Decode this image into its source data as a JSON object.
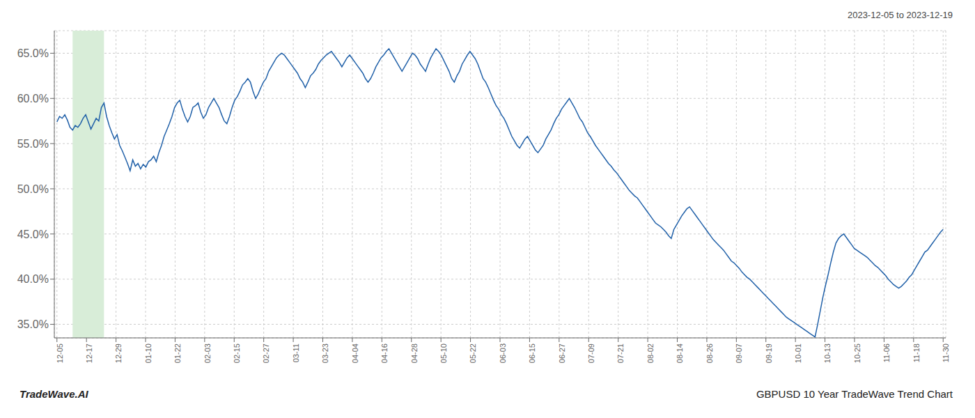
{
  "chart_data": {
    "type": "line",
    "title": "GBPUSD 10 Year TradeWave Trend Chart",
    "subtitle": "2023-12-05 to 2023-12-19",
    "annotations": [
      "TradeWave.AI"
    ],
    "color": "#2060a8",
    "grid": true,
    "highlight": {
      "start": 6,
      "end": 18,
      "color": "#d8edd8"
    },
    "xlim": [
      -1,
      340
    ],
    "xticks": [
      {
        "value": 0,
        "label": "12-05"
      },
      {
        "value": 11.3,
        "label": "12-17"
      },
      {
        "value": 22.6,
        "label": "12-29"
      },
      {
        "value": 33.9,
        "label": "01-10"
      },
      {
        "value": 45.2,
        "label": "01-22"
      },
      {
        "value": 56.5,
        "label": "02-03"
      },
      {
        "value": 67.8,
        "label": "02-15"
      },
      {
        "value": 79.1,
        "label": "02-27"
      },
      {
        "value": 90.4,
        "label": "03-11"
      },
      {
        "value": 101.7,
        "label": "03-23"
      },
      {
        "value": 113,
        "label": "04-04"
      },
      {
        "value": 124.3,
        "label": "04-16"
      },
      {
        "value": 135.6,
        "label": "04-28"
      },
      {
        "value": 146.9,
        "label": "05-10"
      },
      {
        "value": 158.2,
        "label": "05-22"
      },
      {
        "value": 169.5,
        "label": "06-03"
      },
      {
        "value": 180.8,
        "label": "06-15"
      },
      {
        "value": 192.1,
        "label": "06-27"
      },
      {
        "value": 203.4,
        "label": "07-09"
      },
      {
        "value": 214.7,
        "label": "07-21"
      },
      {
        "value": 226,
        "label": "08-02"
      },
      {
        "value": 237.3,
        "label": "08-14"
      },
      {
        "value": 248.6,
        "label": "08-26"
      },
      {
        "value": 259.9,
        "label": "09-07"
      },
      {
        "value": 271.2,
        "label": "09-19"
      },
      {
        "value": 282.5,
        "label": "10-01"
      },
      {
        "value": 293.8,
        "label": "10-13"
      },
      {
        "value": 305.1,
        "label": "10-25"
      },
      {
        "value": 316.4,
        "label": "11-06"
      },
      {
        "value": 327.7,
        "label": "11-18"
      },
      {
        "value": 339,
        "label": "11-30"
      }
    ],
    "ylim": [
      0.335,
      0.675
    ],
    "yticks": [
      {
        "value": 0.35,
        "label": "35.0%"
      },
      {
        "value": 0.4,
        "label": "40.0%"
      },
      {
        "value": 0.45,
        "label": "45.0%"
      },
      {
        "value": 0.5,
        "label": "50.0%"
      },
      {
        "value": 0.55,
        "label": "55.0%"
      },
      {
        "value": 0.6,
        "label": "60.0%"
      },
      {
        "value": 0.65,
        "label": "65.0%"
      }
    ],
    "values": [
      0.574,
      0.58,
      0.578,
      0.582,
      0.576,
      0.568,
      0.565,
      0.57,
      0.568,
      0.572,
      0.578,
      0.582,
      0.574,
      0.566,
      0.572,
      0.578,
      0.575,
      0.59,
      0.595,
      0.58,
      0.57,
      0.562,
      0.555,
      0.56,
      0.548,
      0.542,
      0.535,
      0.528,
      0.52,
      0.532,
      0.525,
      0.528,
      0.522,
      0.527,
      0.524,
      0.53,
      0.532,
      0.536,
      0.53,
      0.54,
      0.548,
      0.558,
      0.565,
      0.572,
      0.58,
      0.59,
      0.595,
      0.598,
      0.588,
      0.58,
      0.574,
      0.58,
      0.59,
      0.592,
      0.595,
      0.585,
      0.578,
      0.582,
      0.59,
      0.595,
      0.6,
      0.595,
      0.59,
      0.582,
      0.575,
      0.572,
      0.58,
      0.59,
      0.598,
      0.602,
      0.608,
      0.615,
      0.618,
      0.622,
      0.618,
      0.608,
      0.6,
      0.605,
      0.612,
      0.618,
      0.622,
      0.63,
      0.635,
      0.64,
      0.645,
      0.648,
      0.65,
      0.648,
      0.644,
      0.64,
      0.636,
      0.632,
      0.628,
      0.622,
      0.618,
      0.612,
      0.618,
      0.625,
      0.628,
      0.632,
      0.638,
      0.642,
      0.645,
      0.648,
      0.65,
      0.652,
      0.648,
      0.644,
      0.64,
      0.635,
      0.64,
      0.645,
      0.648,
      0.644,
      0.64,
      0.636,
      0.632,
      0.628,
      0.622,
      0.618,
      0.622,
      0.628,
      0.635,
      0.64,
      0.645,
      0.648,
      0.652,
      0.655,
      0.65,
      0.645,
      0.64,
      0.635,
      0.63,
      0.635,
      0.64,
      0.645,
      0.65,
      0.648,
      0.644,
      0.638,
      0.634,
      0.63,
      0.638,
      0.645,
      0.65,
      0.655,
      0.652,
      0.648,
      0.642,
      0.636,
      0.63,
      0.622,
      0.618,
      0.625,
      0.63,
      0.638,
      0.643,
      0.648,
      0.652,
      0.648,
      0.644,
      0.638,
      0.63,
      0.622,
      0.618,
      0.612,
      0.605,
      0.598,
      0.592,
      0.588,
      0.582,
      0.578,
      0.572,
      0.565,
      0.558,
      0.553,
      0.548,
      0.545,
      0.55,
      0.555,
      0.558,
      0.553,
      0.548,
      0.543,
      0.54,
      0.544,
      0.548,
      0.555,
      0.56,
      0.565,
      0.572,
      0.578,
      0.582,
      0.588,
      0.592,
      0.596,
      0.6,
      0.595,
      0.59,
      0.584,
      0.578,
      0.574,
      0.568,
      0.562,
      0.558,
      0.553,
      0.548,
      0.544,
      0.54,
      0.536,
      0.532,
      0.528,
      0.525,
      0.521,
      0.518,
      0.514,
      0.51,
      0.506,
      0.502,
      0.498,
      0.495,
      0.492,
      0.49,
      0.486,
      0.482,
      0.478,
      0.474,
      0.47,
      0.466,
      0.462,
      0.46,
      0.458,
      0.455,
      0.452,
      0.448,
      0.445,
      0.455,
      0.46,
      0.465,
      0.47,
      0.474,
      0.478,
      0.48,
      0.476,
      0.472,
      0.468,
      0.464,
      0.46,
      0.456,
      0.452,
      0.448,
      0.444,
      0.441,
      0.438,
      0.435,
      0.432,
      0.428,
      0.424,
      0.42,
      0.418,
      0.415,
      0.412,
      0.408,
      0.405,
      0.402,
      0.4,
      0.397,
      0.394,
      0.391,
      0.388,
      0.385,
      0.382,
      0.379,
      0.376,
      0.373,
      0.37,
      0.367,
      0.364,
      0.361,
      0.358,
      0.356,
      0.354,
      0.352,
      0.35,
      0.348,
      0.346,
      0.344,
      0.342,
      0.34,
      0.338,
      0.336,
      0.35,
      0.365,
      0.38,
      0.393,
      0.405,
      0.418,
      0.43,
      0.44,
      0.445,
      0.448,
      0.45,
      0.446,
      0.442,
      0.438,
      0.434,
      0.432,
      0.43,
      0.428,
      0.426,
      0.424,
      0.421,
      0.418,
      0.415,
      0.413,
      0.41,
      0.407,
      0.404,
      0.4,
      0.397,
      0.394,
      0.392,
      0.39,
      0.392,
      0.395,
      0.398,
      0.402,
      0.405,
      0.41,
      0.415,
      0.42,
      0.425,
      0.43,
      0.432,
      0.436,
      0.44,
      0.444,
      0.448,
      0.452,
      0.455
    ]
  }
}
